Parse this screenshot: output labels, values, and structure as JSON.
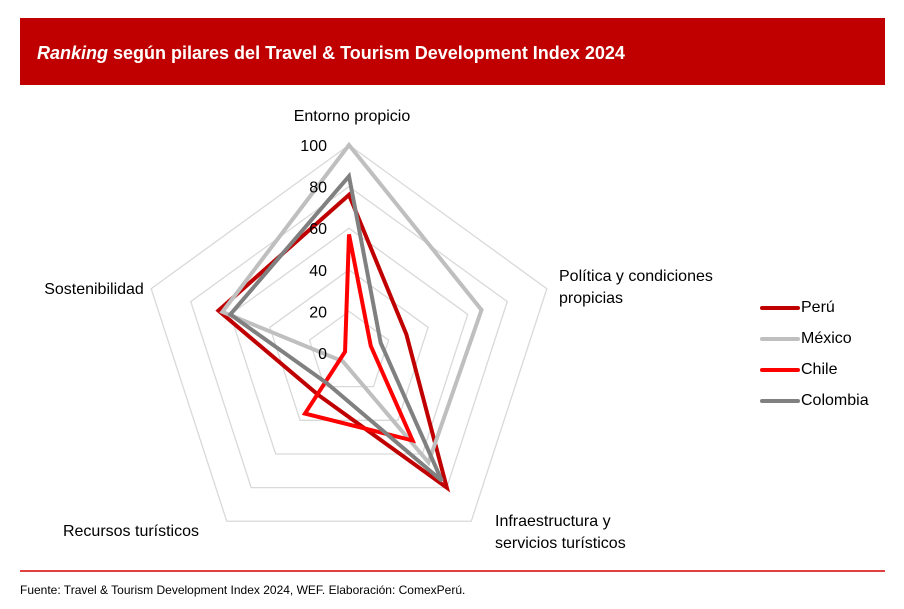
{
  "header": {
    "title_italic": "Ranking",
    "title_rest": " según pilares del Travel & Tourism Development Index 2024",
    "background": "#c00000"
  },
  "footer": {
    "source": "Fuente: Travel & Tourism Development Index 2024, WEF. Elaboración: ComexPerú."
  },
  "chart_data": {
    "type": "radar",
    "title": "Ranking según pilares del Travel & Tourism Development Index 2024",
    "axes": [
      "Entorno propicio",
      "Política y condiciones propicias",
      "Infraestructura y servicios turísticos",
      "Recursos turísticos",
      "Sostenibilidad"
    ],
    "axis_label_lines": [
      [
        "Entorno propicio"
      ],
      [
        "Política y condiciones",
        "propicias"
      ],
      [
        "Infraestructura y",
        "servicios turísticos"
      ],
      [
        "Recursos turísticos"
      ],
      [
        "Sostenibilidad"
      ]
    ],
    "ticks": [
      "0",
      "20",
      "40",
      "60",
      "80",
      "100"
    ],
    "tick_values": [
      0,
      20,
      40,
      60,
      80,
      100
    ],
    "range": [
      0,
      100
    ],
    "legend_position": "right",
    "series": [
      {
        "name": "Perú",
        "color": "#c00000",
        "values": [
          76,
          29,
          80,
          25,
          66
        ]
      },
      {
        "name": "México",
        "color": "#bfbfbf",
        "values": [
          100,
          67,
          65,
          5,
          64
        ]
      },
      {
        "name": "Chile",
        "color": "#ff0000",
        "values": [
          57,
          11,
          52,
          36,
          2
        ]
      },
      {
        "name": "Colombia",
        "color": "#808080",
        "values": [
          85,
          16,
          76,
          18,
          60
        ]
      }
    ]
  }
}
